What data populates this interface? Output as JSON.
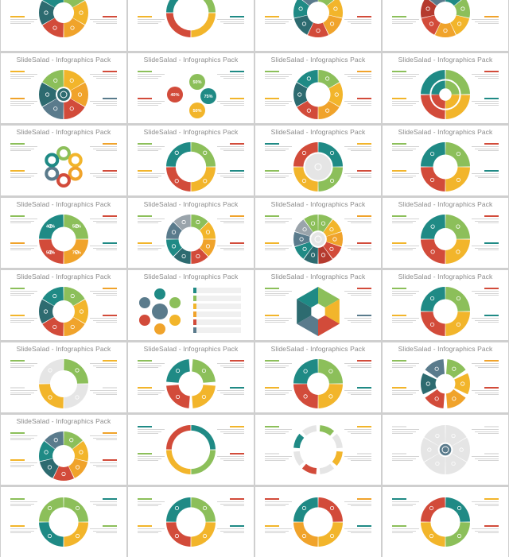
{
  "colors": {
    "green": "#8cbf5a",
    "yellow": "#f2b52b",
    "orange": "#f0a32b",
    "red": "#d24b3a",
    "darkred": "#b53a2e",
    "teal": "#1f8a85",
    "darkteal": "#2d6b70",
    "slate": "#5a7b8c",
    "gray": "#9aa4ab",
    "lightgray": "#e5e5e5"
  },
  "slide_title": "SlideSalad - Infographics Pack",
  "slides": [
    {
      "style": "ring",
      "title": "",
      "segments": [
        "green",
        "yellow",
        "orange",
        "red",
        "darkteal",
        "teal"
      ],
      "hole": 0.42,
      "offset": -4
    },
    {
      "style": "ring",
      "title": "",
      "segments": [
        "green",
        "yellow",
        "red",
        "teal"
      ],
      "hole": 0.72,
      "offset": -4
    },
    {
      "style": "ring",
      "title": "",
      "segments": [
        "green",
        "yellow",
        "orange",
        "red",
        "darkteal",
        "teal",
        "slate"
      ],
      "hole": 0.45,
      "offset": -4
    },
    {
      "style": "ring",
      "title": "",
      "segments": [
        "teal",
        "green",
        "yellow",
        "orange",
        "red",
        "darkred",
        "slate"
      ],
      "hole": 0.45,
      "offset": -4
    },
    {
      "style": "ring",
      "title": "SlideSalad - Infographics Pack",
      "segments": [
        "yellow",
        "orange",
        "red",
        "slate",
        "darkteal",
        "green"
      ],
      "hole": 0.32,
      "center": "darkteal"
    },
    {
      "style": "bubbles",
      "title": "SlideSalad - Infographics Pack",
      "labels": [
        "50%",
        "40%",
        "75%",
        "50%"
      ],
      "bubbleColors": [
        "green",
        "red",
        "teal",
        "yellow"
      ]
    },
    {
      "style": "ring",
      "title": "SlideSalad - Infographics Pack",
      "segments": [
        "green",
        "yellow",
        "orange",
        "red",
        "darkteal",
        "teal"
      ],
      "hole": 0.5
    },
    {
      "style": "quad",
      "title": "SlideSalad - Infographics Pack",
      "segments": [
        "green",
        "yellow",
        "red",
        "teal"
      ]
    },
    {
      "style": "petals",
      "title": "SlideSalad - Infographics Pack",
      "segments": [
        "green",
        "yellow",
        "orange",
        "red",
        "slate",
        "teal"
      ]
    },
    {
      "style": "ring",
      "title": "SlideSalad - Infographics Pack",
      "segments": [
        "green",
        "yellow",
        "red",
        "teal"
      ],
      "hole": 0.62
    },
    {
      "style": "ring",
      "title": "SlideSalad - Infographics Pack",
      "segments": [
        "teal",
        "green",
        "yellow",
        "red"
      ],
      "hole": 0.6,
      "center": "lightgray"
    },
    {
      "style": "ring",
      "title": "SlideSalad - Infographics Pack",
      "segments": [
        "green",
        "yellow",
        "red",
        "teal"
      ],
      "hole": 0.5
    },
    {
      "style": "pct",
      "title": "SlideSalad - Infographics Pack",
      "labels": [
        "50%",
        "75%",
        "50%",
        "40%"
      ],
      "segments": [
        "green",
        "orange",
        "red",
        "teal"
      ]
    },
    {
      "style": "ring",
      "title": "SlideSalad - Infographics Pack",
      "segments": [
        "green",
        "yellow",
        "orange",
        "red",
        "darkteal",
        "teal",
        "slate",
        "gray"
      ],
      "hole": 0.5
    },
    {
      "style": "ring",
      "title": "SlideSalad - Infographics Pack",
      "segments": [
        "green",
        "yellow",
        "orange",
        "red",
        "darkred",
        "darkteal",
        "teal",
        "slate",
        "gray",
        "green"
      ],
      "hole": 0.35,
      "center": "lightgray"
    },
    {
      "style": "ring",
      "title": "SlideSalad - Infographics Pack",
      "segments": [
        "green",
        "yellow",
        "red",
        "teal"
      ],
      "hole": 0.45
    },
    {
      "style": "ring",
      "title": "SlideSalad - Infographics Pack",
      "segments": [
        "green",
        "yellow",
        "orange",
        "red",
        "darkteal",
        "teal"
      ],
      "hole": 0.45
    },
    {
      "style": "list",
      "title": "SlideSalad - Infographics Pack",
      "segments": [
        "teal",
        "green",
        "yellow",
        "orange",
        "red",
        "slate"
      ]
    },
    {
      "style": "hex",
      "title": "SlideSalad - Infographics Pack",
      "segments": [
        "green",
        "yellow",
        "red",
        "slate",
        "darkteal",
        "teal"
      ]
    },
    {
      "style": "ring",
      "title": "SlideSalad - Infographics Pack",
      "segments": [
        "green",
        "yellow",
        "red",
        "teal"
      ],
      "hole": 0.5
    },
    {
      "style": "ring",
      "title": "SlideSalad - Infographics Pack",
      "segments": [
        "green",
        "lightgray",
        "yellow",
        "lightgray"
      ],
      "hole": 0.55
    },
    {
      "style": "ring",
      "title": "SlideSalad - Infographics Pack",
      "segments": [
        "green",
        "yellow",
        "red",
        "teal"
      ],
      "hole": 0.5,
      "gap": true
    },
    {
      "style": "ring",
      "title": "SlideSalad - Infographics Pack",
      "segments": [
        "green",
        "yellow",
        "red",
        "teal"
      ],
      "hole": 0.45
    },
    {
      "style": "ring",
      "title": "SlideSalad - Infographics Pack",
      "segments": [
        "green",
        "yellow",
        "orange",
        "red",
        "darkteal",
        "slate"
      ],
      "hole": 0.4,
      "gap": true
    },
    {
      "style": "ring",
      "title": "SlideSalad - Infographics Pack",
      "segments": [
        "green",
        "yellow",
        "orange",
        "red",
        "darkteal",
        "teal",
        "slate"
      ],
      "hole": 0.45
    },
    {
      "style": "ring",
      "title": "",
      "segments": [
        "teal",
        "green",
        "yellow",
        "red"
      ],
      "hole": 0.78
    },
    {
      "style": "ring",
      "title": "",
      "segments": [
        "green",
        "lightgray",
        "yellow",
        "lightgray",
        "red",
        "lightgray",
        "teal",
        "lightgray"
      ],
      "hole": 0.75,
      "gap": true
    },
    {
      "style": "ring",
      "title": "",
      "segments": [
        "lightgray",
        "lightgray",
        "lightgray",
        "lightgray",
        "lightgray",
        "lightgray"
      ],
      "hole": 0.3,
      "center": "slate"
    },
    {
      "style": "ring",
      "title": "",
      "segments": [
        "green",
        "yellow",
        "teal",
        "green"
      ],
      "hole": 0.6
    },
    {
      "style": "ring",
      "title": "",
      "segments": [
        "green",
        "yellow",
        "red",
        "teal"
      ],
      "hole": 0.6
    },
    {
      "style": "ring",
      "title": "",
      "segments": [
        "red",
        "yellow",
        "orange",
        "teal"
      ],
      "hole": 0.6
    },
    {
      "style": "ring",
      "title": "",
      "segments": [
        "teal",
        "green",
        "yellow",
        "red"
      ],
      "hole": 0.6
    }
  ]
}
